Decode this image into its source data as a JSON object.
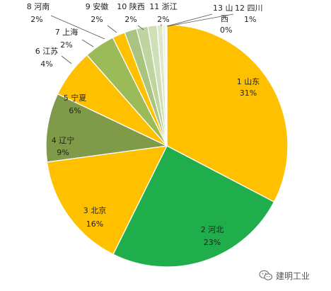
{
  "chart_data": {
    "type": "pie",
    "title": "",
    "slices": [
      {
        "label": "1 山东",
        "value": 31,
        "pct": "31%",
        "color": "#FFC000"
      },
      {
        "label": "2 河北",
        "value": 23,
        "pct": "23%",
        "color": "#1FAE4B"
      },
      {
        "label": "3 北京",
        "value": 16,
        "pct": "16%",
        "color": "#FFC000"
      },
      {
        "label": "4 辽宁",
        "value": 9,
        "pct": "9%",
        "color": "#7F9A48"
      },
      {
        "label": "5 宁夏",
        "value": 6,
        "pct": "6%",
        "color": "#FFC000"
      },
      {
        "label": "6 江苏",
        "value": 4,
        "pct": "4%",
        "color": "#9BBB59"
      },
      {
        "label": "7 上海",
        "value": 2,
        "pct": "2%",
        "color": "#FFC000"
      },
      {
        "label": "8 河南",
        "value": 2,
        "pct": "2%",
        "color": "#A9C47F"
      },
      {
        "label": "9 安徽",
        "value": 2,
        "pct": "2%",
        "color": "#BFD5A0"
      },
      {
        "label": "10 陕西",
        "value": 2,
        "pct": "2%",
        "color": "#CFE0B8"
      },
      {
        "label": "11 浙江",
        "value": 2,
        "pct": "2%",
        "color": "#DDE8CC"
      },
      {
        "label": "12 四川",
        "value": 1,
        "pct": "1%",
        "color": "#E8EFDC"
      },
      {
        "label": "13 山西",
        "value": 0,
        "pct": "0%",
        "color": "#F2F6EC"
      }
    ]
  },
  "watermark": {
    "text": "建明工业",
    "icon": "wechat-icon",
    "color": "#555555"
  }
}
